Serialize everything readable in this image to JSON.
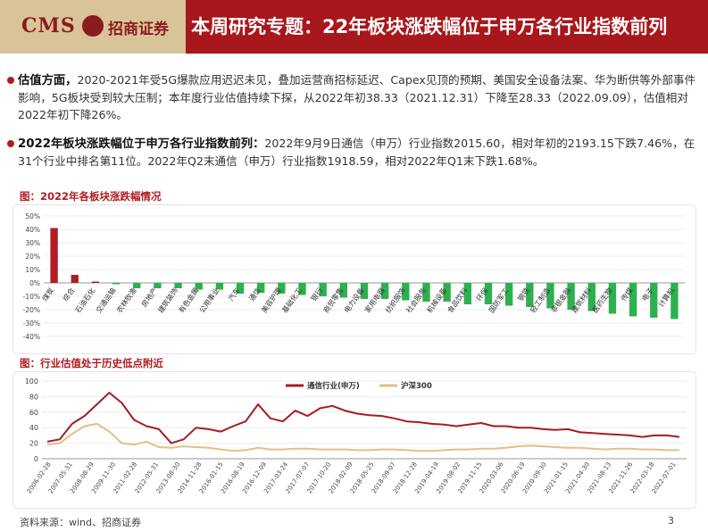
{
  "header": {
    "logo_cms": "CMS",
    "logo_cn": "招商证券",
    "title": "本周研究专题：22年板块涨跌幅位于申万各行业指数前列"
  },
  "paragraphs": [
    {
      "bold": "估值方面，",
      "text": "2020-2021年受5G爆款应用迟迟未见，叠加运营商招标延迟、Capex见顶的预期、美国安全设备法案、华为断供等外部事件影响，5G板块受到较大压制；本年度行业估值持续下探，从2022年初38.33（2021.12.31）下降至28.33（2022.09.09），估值相对2022年初下降26%。"
    },
    {
      "bold": "2022年板块涨跌幅位于申万各行业指数前列：",
      "text": "2022年9月9日通信（申万）行业指数2015.60，相对年初的2193.15下跌7.46%，在31个行业中排名第11位。2022年Q2末通信（申万）行业指数1918.59，相对2022年Q1末下跌1.68%。"
    }
  ],
  "captions": {
    "chart1": "图：2022年各板块涨跌幅情况",
    "chart2": "图：行业估值处于历史低点附近"
  },
  "footer": {
    "source": "资料来源：wind、招商证券",
    "page": "3"
  },
  "chart_data": [
    {
      "type": "bar",
      "title": "2022年各板块涨跌幅情况",
      "unit": "%",
      "ylim": [
        -40,
        50
      ],
      "yticks": [
        "50%",
        "40%",
        "30%",
        "20%",
        "10%",
        "0%",
        "-10%",
        "-20%",
        "-30%",
        "-40%"
      ],
      "categories": [
        "煤炭",
        "综合",
        "石油石化",
        "交通运输",
        "农林牧渔",
        "房地产",
        "建筑装饰",
        "有色金属",
        "公用事业",
        "汽车",
        "通信",
        "美容护理",
        "基础化工",
        "银行",
        "商贸零售",
        "电力设备",
        "家用电器",
        "纺织服饰",
        "社会服务",
        "机械设备",
        "食品饮料",
        "环保",
        "国防军工",
        "钢铁",
        "轻工制造",
        "非银金融",
        "建筑材料",
        "医药生物",
        "传媒",
        "电子",
        "计算机"
      ],
      "values": [
        41,
        6,
        1,
        -1,
        -4,
        -4,
        -4,
        -5,
        -5,
        -8,
        -7.5,
        -8,
        -9,
        -10,
        -11,
        -12,
        -12,
        -13,
        -14,
        -14,
        -16,
        -16,
        -17,
        -18,
        -19,
        -20,
        -21,
        -23,
        -25,
        -26,
        -27
      ],
      "colors": {
        "positive": "#b01c22",
        "negative": "#2db04f"
      }
    },
    {
      "type": "line",
      "title": "行业估值处于历史低点附近",
      "ylim": [
        0,
        100
      ],
      "yticks": [
        "100",
        "80",
        "60",
        "40",
        "20",
        "0"
      ],
      "x_tick_labels": [
        "2006-02-28",
        "2007-05-31",
        "2008-08-29",
        "2009-11-30",
        "2011-02-28",
        "2012-05-31",
        "2013-08-30",
        "2014-11-28",
        "2016-01-15",
        "2016-08-19",
        "2016-12-09",
        "2017-03-24",
        "2017-07-07",
        "2017-10-20",
        "2018-02-09",
        "2018-05-25",
        "2018-09-07",
        "2018-12-28",
        "2019-04-19",
        "2019-08-02",
        "2019-11-15",
        "2020-03-06",
        "2020-06-19",
        "2020-09-30",
        "2021-01-15",
        "2021-04-30",
        "2021-08-13",
        "2021-11-26",
        "2022-03-18",
        "2022-07-01"
      ],
      "legend_position": "top-center",
      "series": [
        {
          "name": "通信行业(申万)",
          "color": "#a51c24",
          "values": [
            22,
            25,
            45,
            55,
            70,
            85,
            72,
            50,
            42,
            38,
            20,
            25,
            40,
            38,
            35,
            42,
            48,
            70,
            52,
            48,
            62,
            55,
            65,
            68,
            62,
            58,
            56,
            55,
            52,
            48,
            47,
            45,
            44,
            42,
            44,
            46,
            42,
            42,
            40,
            40,
            38,
            37,
            38,
            34,
            33,
            32,
            31,
            30,
            28,
            30,
            30,
            28
          ]
        },
        {
          "name": "沪深300",
          "color": "#e3bf86",
          "values": [
            18,
            20,
            32,
            42,
            45,
            35,
            20,
            18,
            22,
            15,
            14,
            16,
            15,
            14,
            12,
            10,
            11,
            14,
            12,
            12,
            13,
            13,
            12,
            12,
            12,
            11,
            11,
            12,
            12,
            11,
            10,
            10,
            11,
            12,
            12,
            13,
            13,
            14,
            16,
            17,
            16,
            15,
            14,
            14,
            13,
            12,
            13,
            13,
            12,
            12,
            11,
            11
          ]
        }
      ]
    }
  ]
}
